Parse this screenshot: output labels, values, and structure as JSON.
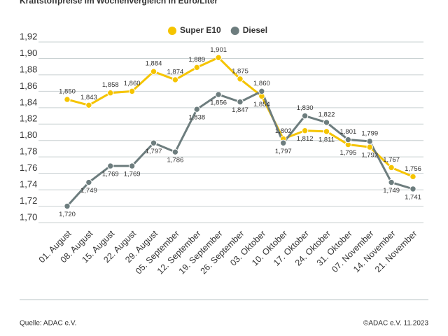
{
  "chart_data": {
    "type": "line",
    "title": "Kraftstoffpreise im Wochenvergleich in Euro/Liter",
    "categories": [
      "01. August",
      "08. August",
      "15. August",
      "22. August",
      "29. August",
      "05. September",
      "12. September",
      "19. September",
      "26. September",
      "03. Oktober",
      "10. Oktober",
      "17. Oktober",
      "24. Oktober",
      "31. Oktober",
      "07. November",
      "14. November",
      "21. November"
    ],
    "series": [
      {
        "name": "Super E10",
        "color": "#f5c400",
        "values": [
          1.85,
          1.843,
          1.858,
          1.86,
          1.884,
          1.874,
          1.889,
          1.901,
          1.875,
          1.854,
          1.802,
          1.812,
          1.811,
          1.795,
          1.792,
          1.767,
          1.756
        ],
        "value_labels": [
          "1,850",
          "1,843",
          "1,858",
          "1,860",
          "1,884",
          "1,874",
          "1,889",
          "1,901",
          "1,875",
          "1,854",
          "1,802",
          "1,812",
          "1,811",
          "1,795",
          "1,792",
          "1,767",
          "1,756"
        ]
      },
      {
        "name": "Diesel",
        "color": "#6d7d7e",
        "values": [
          1.72,
          1.749,
          1.769,
          1.769,
          1.797,
          1.786,
          1.838,
          1.856,
          1.847,
          1.86,
          1.797,
          1.83,
          1.822,
          1.801,
          1.799,
          1.749,
          1.741
        ],
        "value_labels": [
          "1,720",
          "1,749",
          "1,769",
          "1,769",
          "1,797",
          "1,786",
          "1,838",
          "1,856",
          "1,847",
          "1,860",
          "1,797",
          "1,830",
          "1,822",
          "1,801",
          "1,799",
          "1,749",
          "1,741"
        ]
      }
    ],
    "ylim": [
      1.7,
      1.92
    ],
    "yticks": [
      {
        "value": 1.7,
        "label": "1,70"
      },
      {
        "value": 1.72,
        "label": "1,72"
      },
      {
        "value": 1.74,
        "label": "1,74"
      },
      {
        "value": 1.76,
        "label": "1,76"
      },
      {
        "value": 1.78,
        "label": "1,78"
      },
      {
        "value": 1.8,
        "label": "1,80"
      },
      {
        "value": 1.82,
        "label": "1,82"
      },
      {
        "value": 1.84,
        "label": "1,84"
      },
      {
        "value": 1.86,
        "label": "1,86"
      },
      {
        "value": 1.88,
        "label": "1,88"
      },
      {
        "value": 1.9,
        "label": "1,90"
      },
      {
        "value": 1.92,
        "label": "1,92"
      }
    ],
    "grid": true,
    "legend": "top",
    "source": "Quelle: ADAC e.V.",
    "copyright": "©ADAC e.V. 11.2023"
  }
}
